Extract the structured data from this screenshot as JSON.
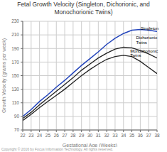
{
  "chart_data": {
    "type": "line",
    "title": "Fetal Growth Velocity (Singleton, Dichorionic, and\nMonochorionic Twins)",
    "x_label": "Gestational Age (Weeks)",
    "y_label": "Growth Velocity (grams per week)",
    "x": [
      22,
      23,
      24,
      25,
      26,
      27,
      28,
      29,
      30,
      31,
      32,
      33,
      34,
      35,
      36,
      37,
      38
    ],
    "series": [
      {
        "name": "Singleton",
        "color": "#2244bb",
        "values": [
          90,
          100,
          112,
          122,
          133,
          143,
          154,
          165,
          175,
          185,
          196,
          205,
          212,
          217,
          218,
          217,
          215
        ]
      },
      {
        "name": "Dichorionic Twins",
        "color": "#222222",
        "values": [
          87,
          96,
          107,
          117,
          127,
          137,
          147,
          158,
          167,
          176,
          183,
          189,
          192,
          191,
          187,
          182,
          176
        ]
      },
      {
        "name": "Monochorionic Twins",
        "color": "#222222",
        "values": [
          84,
          93,
          103,
          112,
          121,
          130,
          140,
          150,
          159,
          167,
          174,
          178,
          180,
          178,
          171,
          162,
          153
        ]
      }
    ],
    "xlim": [
      22,
      38
    ],
    "ylim": [
      70,
      230
    ],
    "xticks": [
      22,
      23,
      24,
      25,
      26,
      27,
      28,
      29,
      30,
      31,
      32,
      33,
      34,
      35,
      36,
      37,
      38
    ],
    "yticks": [
      70,
      90,
      110,
      130,
      150,
      170,
      190,
      210,
      230
    ],
    "grid": true,
    "annotations": [
      {
        "text": "Singleton",
        "x": 36.05,
        "y": 220
      },
      {
        "text": "Dichorionic\nTwins",
        "x": 35.5,
        "y": 202
      },
      {
        "text": "Monochorionic\nTwins",
        "x": 34.8,
        "y": 183
      },
      {
        "text": "Copyright © 2016 by Focus Information Technology. All rights reserved."
      }
    ]
  }
}
